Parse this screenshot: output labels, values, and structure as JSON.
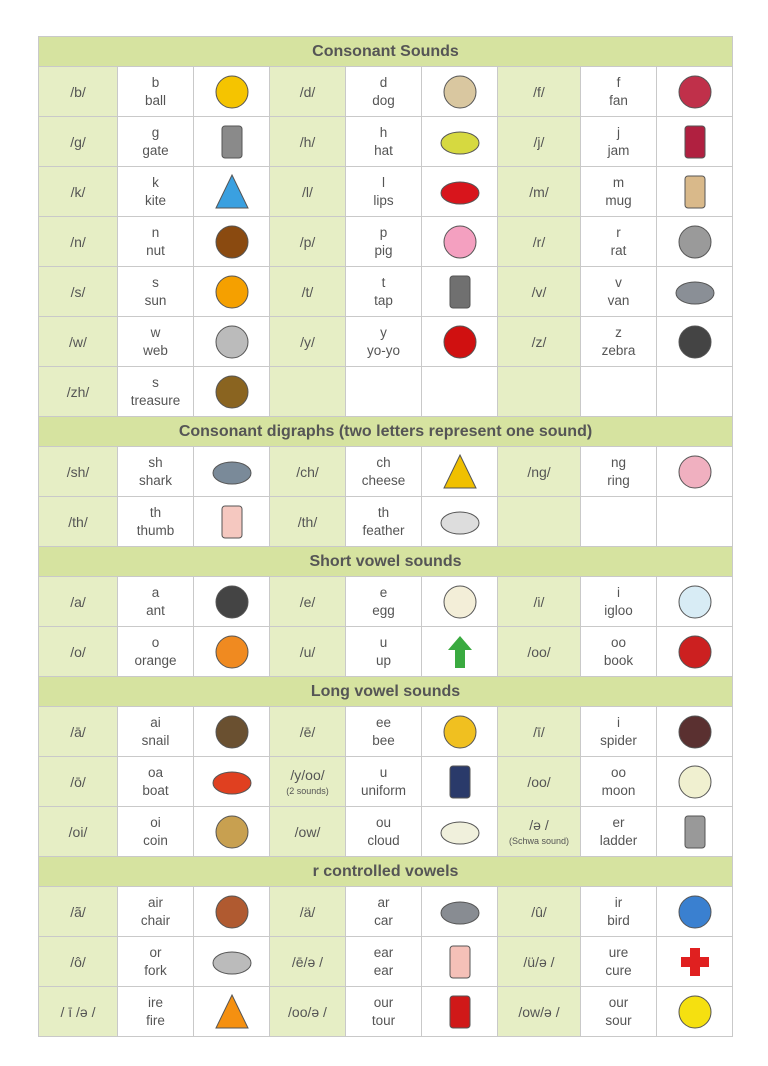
{
  "sections": [
    {
      "title": "Consonant Sounds",
      "rows": [
        [
          {
            "sound": "/b/",
            "letters": "b",
            "word": "ball",
            "icon": "ball-icon",
            "color": "#f5c400"
          },
          {
            "sound": "/d/",
            "letters": "d",
            "word": "dog",
            "icon": "dog-icon",
            "color": "#d9c7a0"
          },
          {
            "sound": "/f/",
            "letters": "f",
            "word": "fan",
            "icon": "fan-icon",
            "color": "#c0304a"
          }
        ],
        [
          {
            "sound": "/g/",
            "letters": "g",
            "word": "gate",
            "icon": "gate-icon",
            "color": "#8a8a8a"
          },
          {
            "sound": "/h/",
            "letters": "h",
            "word": "hat",
            "icon": "hat-icon",
            "color": "#d6d940"
          },
          {
            "sound": "/j/",
            "letters": "j",
            "word": "jam",
            "icon": "jam-icon",
            "color": "#b02040"
          }
        ],
        [
          {
            "sound": "/k/",
            "letters": "k",
            "word": "kite",
            "icon": "kite-icon",
            "color": "#3aa0e0"
          },
          {
            "sound": "/l/",
            "letters": "l",
            "word": "lips",
            "icon": "lips-icon",
            "color": "#d8151c"
          },
          {
            "sound": "/m/",
            "letters": "m",
            "word": "mug",
            "icon": "mug-icon",
            "color": "#d9b98a"
          }
        ],
        [
          {
            "sound": "/n/",
            "letters": "n",
            "word": "nut",
            "icon": "acorn-icon",
            "color": "#8a4a10"
          },
          {
            "sound": "/p/",
            "letters": "p",
            "word": "pig",
            "icon": "pig-icon",
            "color": "#f4a0c0"
          },
          {
            "sound": "/r/",
            "letters": "r",
            "word": "rat",
            "icon": "rat-icon",
            "color": "#9a9a9a"
          }
        ],
        [
          {
            "sound": "/s/",
            "letters": "s",
            "word": "sun",
            "icon": "sun-icon",
            "color": "#f5a000"
          },
          {
            "sound": "/t/",
            "letters": "t",
            "word": "tap",
            "icon": "tap-icon",
            "color": "#707070"
          },
          {
            "sound": "/v/",
            "letters": "v",
            "word": "van",
            "icon": "van-icon",
            "color": "#8a8f96"
          }
        ],
        [
          {
            "sound": "/w/",
            "letters": "w",
            "word": "web",
            "icon": "web-icon",
            "color": "#bbbbbb"
          },
          {
            "sound": "/y/",
            "letters": "y",
            "word": "yo-yo",
            "icon": "yoyo-icon",
            "color": "#d01010"
          },
          {
            "sound": "/z/",
            "letters": "z",
            "word": "zebra",
            "icon": "zebra-icon",
            "color": "#444444"
          }
        ],
        [
          {
            "sound": "/zh/",
            "letters": "s",
            "word": "treasure",
            "icon": "treasure-chest-icon",
            "color": "#8a6420"
          },
          null,
          null
        ]
      ]
    },
    {
      "title": "Consonant digraphs (two letters represent one sound)",
      "rows": [
        [
          {
            "sound": "/sh/",
            "letters": "sh",
            "word": "shark",
            "icon": "shark-icon",
            "color": "#7a8a99"
          },
          {
            "sound": "/ch/",
            "letters": "ch",
            "word": "cheese",
            "icon": "cheese-icon",
            "color": "#f0c000"
          },
          {
            "sound": "/ng/",
            "letters": "ng",
            "word": "ring",
            "icon": "ring-icon",
            "color": "#f0b0c0"
          }
        ],
        [
          {
            "sound": "/th/",
            "letters": "th",
            "word": "thumb",
            "icon": "thumb-icon",
            "color": "#f5c8c0"
          },
          {
            "sound": "/th/",
            "letters": "th",
            "word": "feather",
            "icon": "feather-icon",
            "color": "#dddddd"
          },
          null
        ]
      ]
    },
    {
      "title": "Short vowel sounds",
      "rows": [
        [
          {
            "sound": "/a/",
            "letters": "a",
            "word": "ant",
            "icon": "ant-icon",
            "color": "#444444"
          },
          {
            "sound": "/e/",
            "letters": "e",
            "word": "egg",
            "icon": "egg-icon",
            "color": "#f3eed8"
          },
          {
            "sound": "/i/",
            "letters": "i",
            "word": "igloo",
            "icon": "igloo-icon",
            "color": "#d8ecf5"
          }
        ],
        [
          {
            "sound": "/o/",
            "letters": "o",
            "word": "orange",
            "icon": "orange-icon",
            "color": "#f08a20"
          },
          {
            "sound": "/u/",
            "letters": "u",
            "word": "up",
            "icon": "up-arrow-icon",
            "color": "#3aaa40"
          },
          {
            "sound": "/oo/",
            "letters": "oo",
            "word": "book",
            "icon": "book-icon",
            "color": "#cc2020"
          }
        ]
      ]
    },
    {
      "title": "Long vowel sounds",
      "rows": [
        [
          {
            "sound": "/ā/",
            "letters": "ai",
            "word": "snail",
            "icon": "snail-icon",
            "color": "#6a5030"
          },
          {
            "sound": "/ē/",
            "letters": "ee",
            "word": "bee",
            "icon": "bee-icon",
            "color": "#f0c020"
          },
          {
            "sound": "/ī/",
            "letters": "i",
            "word": "spider",
            "icon": "spider-icon",
            "color": "#5a3030"
          }
        ],
        [
          {
            "sound": "/ō/",
            "letters": "oa",
            "word": "boat",
            "icon": "sailboat-icon",
            "color": "#e04020"
          },
          {
            "sound": "/y/oo/",
            "sub": "(2 sounds)",
            "letters": "u",
            "word": "uniform",
            "icon": "uniform-icon",
            "color": "#2a3a6a"
          },
          {
            "sound": "/oo/",
            "letters": "oo",
            "word": "moon",
            "icon": "moon-icon",
            "color": "#f0f0d0"
          }
        ],
        [
          {
            "sound": "/oi/",
            "letters": "oi",
            "word": "coin",
            "icon": "coin-icon",
            "color": "#c8a050"
          },
          {
            "sound": "/ow/",
            "letters": "ou",
            "word": "cloud",
            "icon": "cloud-icon",
            "color": "#f0f0dc"
          },
          {
            "sound": "/ə /",
            "sub": "(Schwa sound)",
            "letters": "er",
            "word": "ladder",
            "icon": "ladder-icon",
            "color": "#999999"
          }
        ]
      ]
    },
    {
      "title": "r controlled vowels",
      "rows": [
        [
          {
            "sound": "/ã/",
            "letters": "air",
            "word": "chair",
            "icon": "chair-icon",
            "color": "#b05a30"
          },
          {
            "sound": "/ä/",
            "letters": "ar",
            "word": "car",
            "icon": "car-icon",
            "color": "#888c92"
          },
          {
            "sound": "/û/",
            "letters": "ir",
            "word": "bird",
            "icon": "bird-icon",
            "color": "#3a80d0"
          }
        ],
        [
          {
            "sound": "/ô/",
            "letters": "or",
            "word": "fork",
            "icon": "fork-icon",
            "color": "#bbbbbb"
          },
          {
            "sound": "/ē/ə /",
            "letters": "ear",
            "word": "ear",
            "icon": "ear-icon",
            "color": "#f5c0b8"
          },
          {
            "sound": "/ü/ə /",
            "letters": "ure",
            "word": "cure",
            "icon": "red-cross-icon",
            "color": "#e02020"
          }
        ],
        [
          {
            "sound": "/ ī /ə /",
            "letters": "ire",
            "word": "fire",
            "icon": "fire-icon",
            "color": "#f59010"
          },
          {
            "sound": "/oo/ə /",
            "letters": "our",
            "word": "tour",
            "icon": "bus-icon",
            "color": "#d01818"
          },
          {
            "sound": "/ow/ə /",
            "letters": "our",
            "word": "sour",
            "icon": "lemon-icon",
            "color": "#f5e010"
          }
        ]
      ]
    }
  ]
}
